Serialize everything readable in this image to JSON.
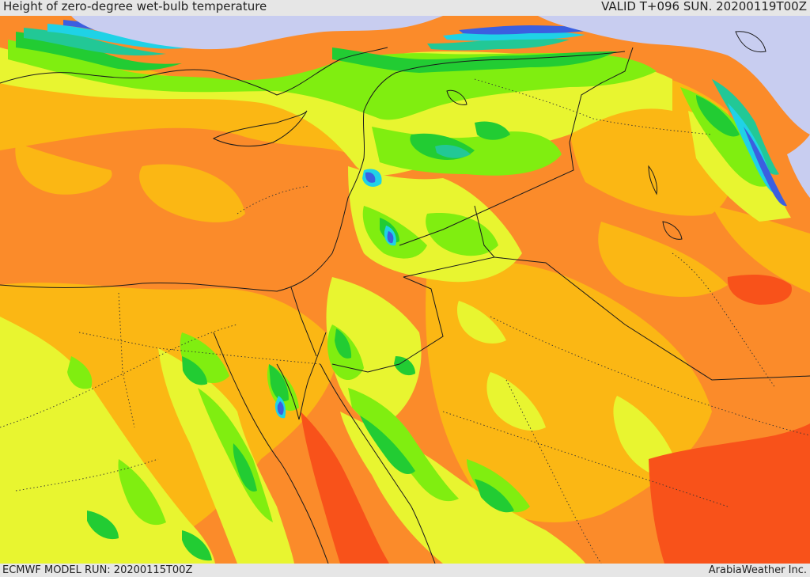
{
  "header": {
    "title": "Height of zero-degree wet-bulb temperature",
    "valid": "VALID T+096 SUN. 20200119T00Z"
  },
  "footer": {
    "model_run": "ECMWF MODEL RUN: 20200115T00Z",
    "credit": "ArabiaWeather Inc."
  },
  "colors": {
    "snow": "#c8cdf0",
    "blue": "#3b5fe0",
    "cyan": "#1fd2e6",
    "teal": "#22c896",
    "green": "#22cc33",
    "lime": "#80ee10",
    "yellow": "#e8f530",
    "gold": "#fbb714",
    "orange": "#fb8b2a",
    "red_orange": "#f8521a"
  }
}
